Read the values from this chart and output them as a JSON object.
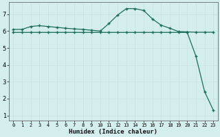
{
  "xlabel": "Humidex (Indice chaleur)",
  "bg_color": "#d4eeee",
  "grid_major_color": "#c8e4e4",
  "grid_minor_color": "#e8c8c8",
  "line_color": "#1a6b5a",
  "x_ticks": [
    0,
    1,
    2,
    3,
    4,
    5,
    6,
    7,
    8,
    9,
    10,
    11,
    12,
    13,
    14,
    15,
    16,
    17,
    18,
    19,
    20,
    21,
    22,
    23
  ],
  "y_ticks": [
    1,
    2,
    3,
    4,
    5,
    6,
    7
  ],
  "ylim": [
    0.7,
    7.7
  ],
  "xlim": [
    -0.5,
    23.5
  ],
  "curve1_x": [
    0,
    1,
    2,
    3,
    4,
    5,
    6,
    7,
    8,
    9,
    10,
    11,
    12,
    13,
    14,
    15,
    16,
    17,
    18,
    19,
    20,
    21,
    22,
    23
  ],
  "curve1_y": [
    6.1,
    6.1,
    6.27,
    6.32,
    6.27,
    6.22,
    6.17,
    6.13,
    6.1,
    6.05,
    6.0,
    6.45,
    6.95,
    7.33,
    7.33,
    7.22,
    6.72,
    6.35,
    6.17,
    5.97,
    5.95,
    5.93,
    5.93,
    5.93
  ],
  "curve2_x": [
    0,
    1,
    2,
    3,
    4,
    5,
    6,
    7,
    8,
    9,
    10,
    11,
    12,
    13,
    14,
    15,
    16,
    17,
    18,
    19,
    20,
    21,
    22,
    23
  ],
  "curve2_y": [
    5.92,
    5.92,
    5.92,
    5.92,
    5.92,
    5.92,
    5.92,
    5.92,
    5.92,
    5.92,
    5.92,
    5.92,
    5.92,
    5.92,
    5.92,
    5.92,
    5.92,
    5.92,
    5.92,
    5.92,
    5.92,
    4.52,
    2.42,
    1.32
  ],
  "marker": "+",
  "markersize": 3,
  "linewidth": 0.9
}
